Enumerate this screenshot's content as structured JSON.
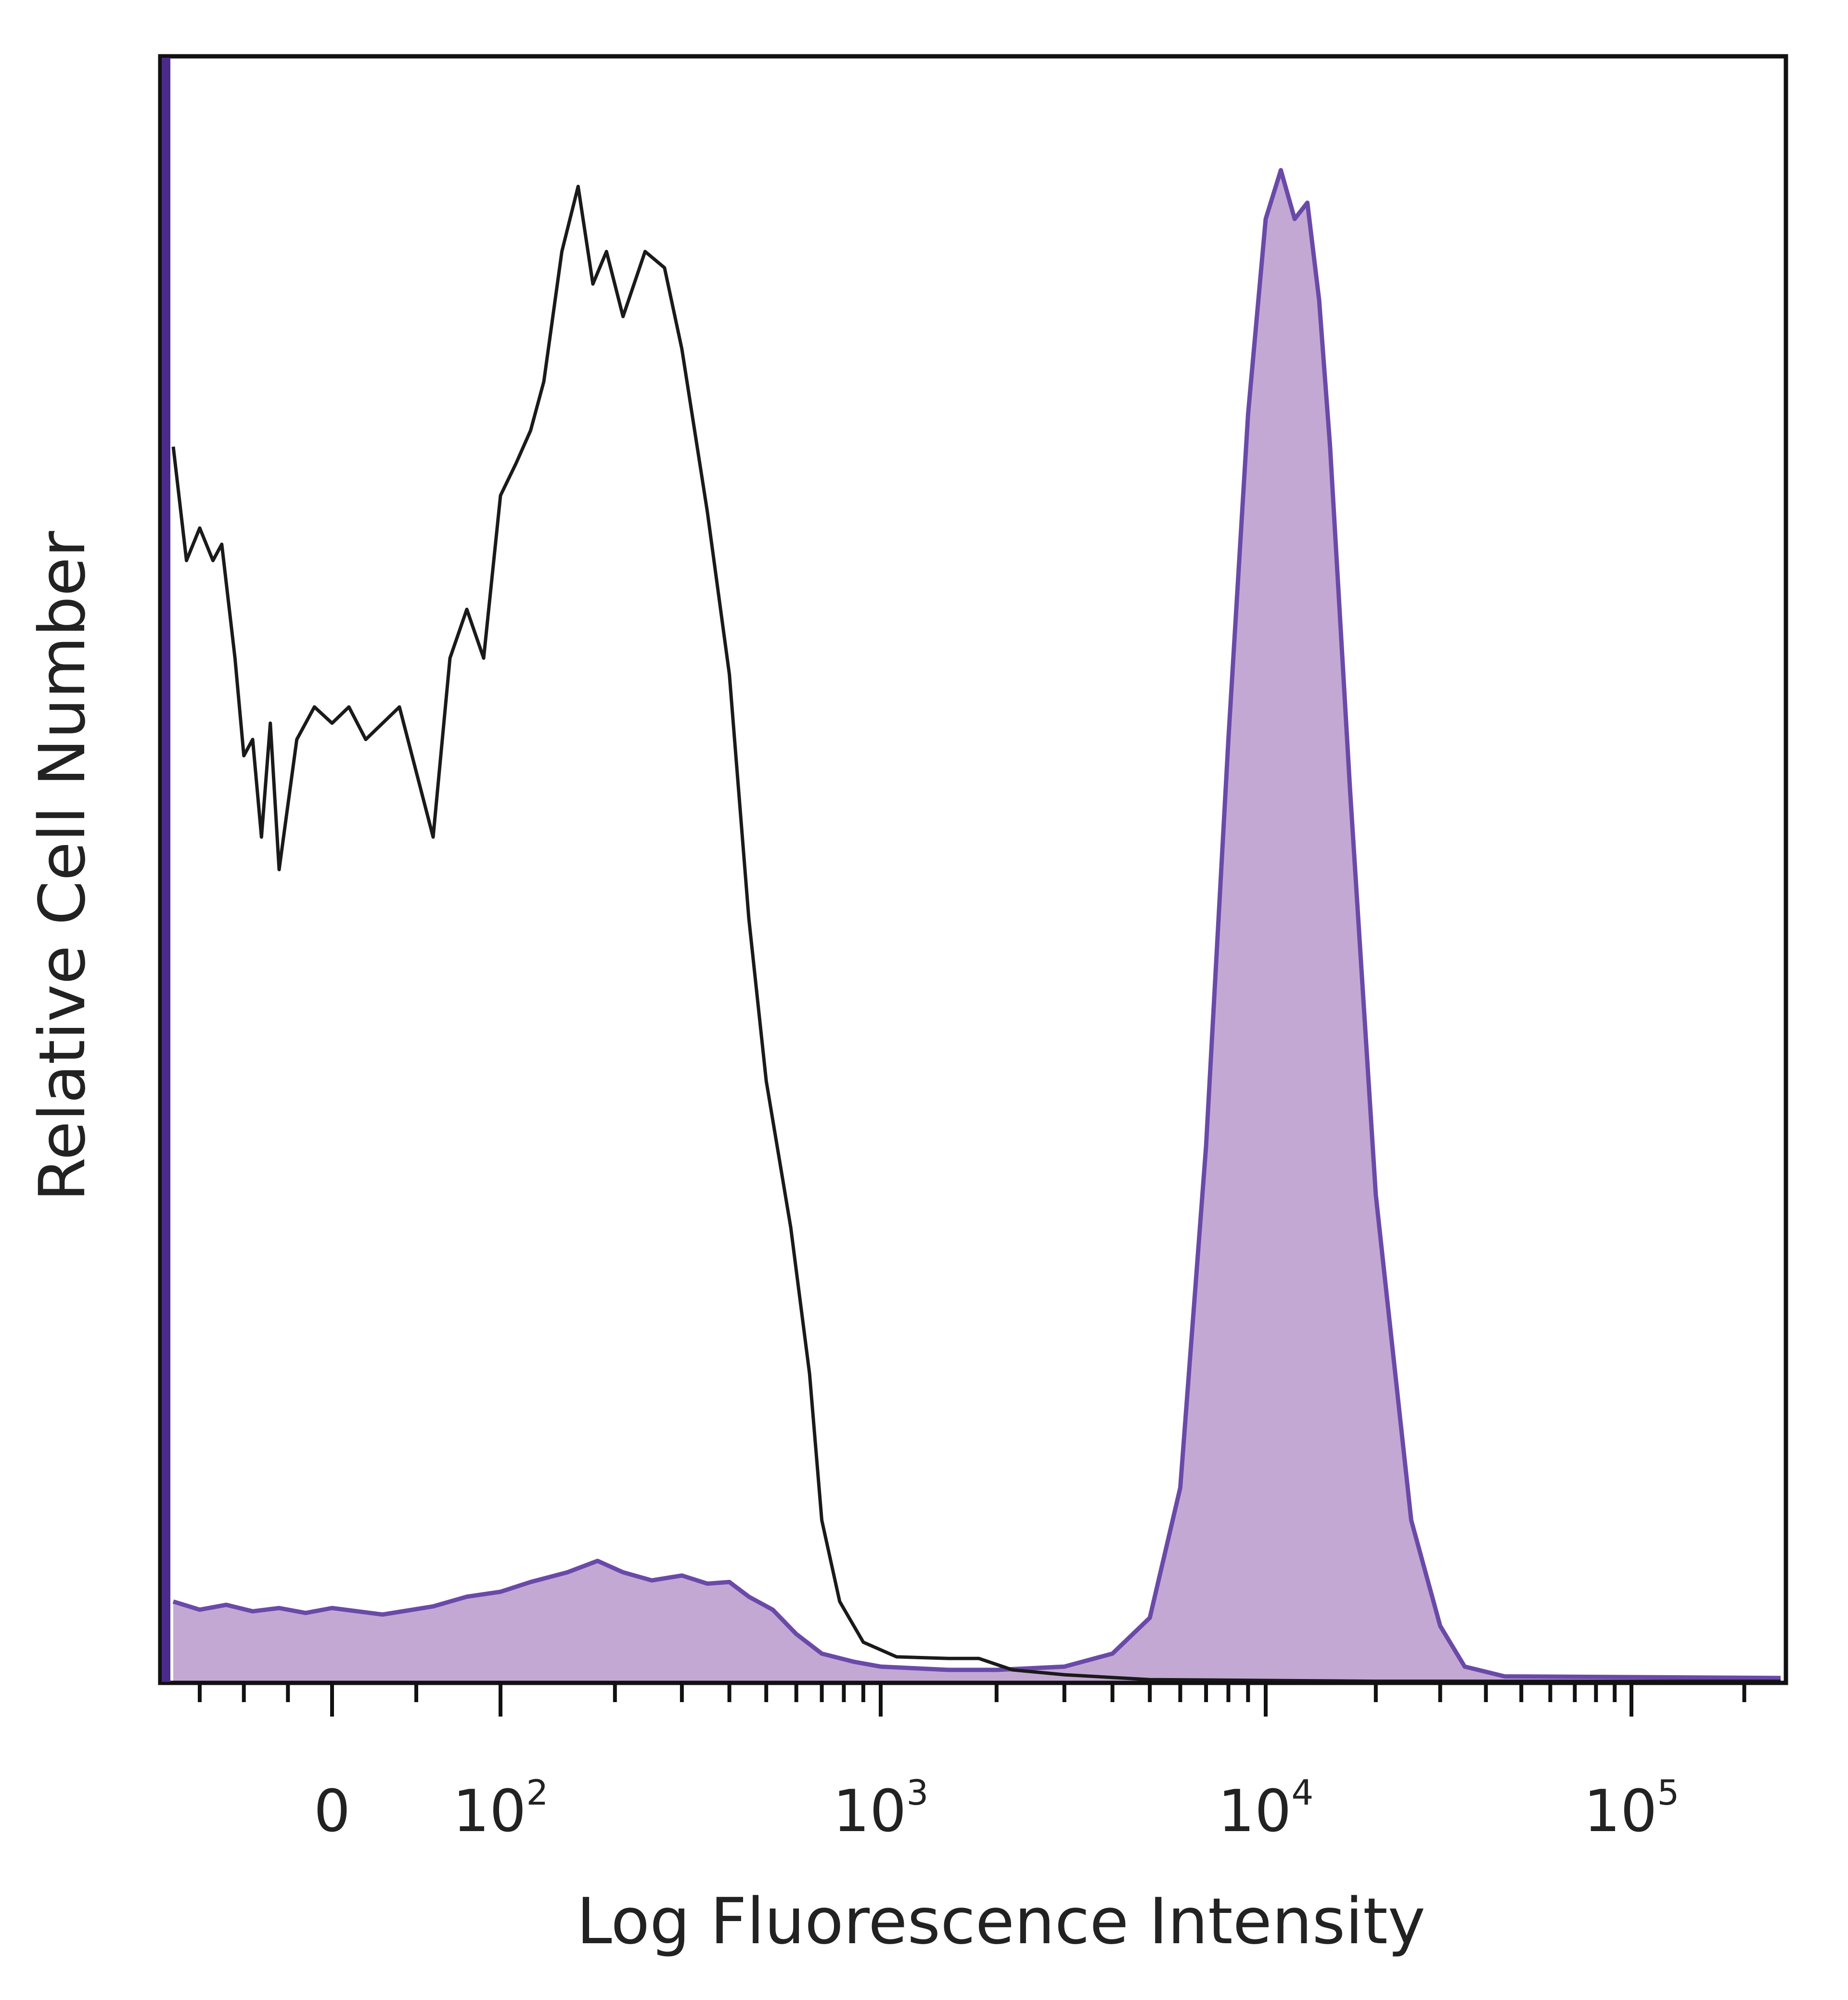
{
  "chart_data": {
    "type": "area",
    "title": "",
    "xlabel": "Log Fluorescence Intensity",
    "ylabel": "Relative Cell Number",
    "x_scale": "biexponential",
    "ylim": [
      0,
      100
    ],
    "grid": false,
    "legend": "none",
    "x_ticks": [
      {
        "value": 0,
        "base": "0",
        "exp": ""
      },
      {
        "value": 100,
        "base": "10",
        "exp": "2"
      },
      {
        "value": 1000,
        "base": "10",
        "exp": "3"
      },
      {
        "value": 10000,
        "base": "10",
        "exp": "4"
      },
      {
        "value": 100000,
        "base": "10",
        "exp": "5"
      }
    ],
    "series": [
      {
        "style": "outline",
        "color": "#1a1a1a",
        "points": [
          [
            -180,
            76
          ],
          [
            -165,
            69
          ],
          [
            -150,
            71
          ],
          [
            -135,
            69
          ],
          [
            -125,
            70
          ],
          [
            -110,
            63
          ],
          [
            -100,
            57
          ],
          [
            -90,
            58
          ],
          [
            -80,
            52
          ],
          [
            -70,
            59
          ],
          [
            -60,
            50
          ],
          [
            -40,
            58
          ],
          [
            -20,
            60
          ],
          [
            0,
            59
          ],
          [
            10,
            60
          ],
          [
            20,
            58
          ],
          [
            40,
            60
          ],
          [
            60,
            52
          ],
          [
            70,
            63
          ],
          [
            80,
            66
          ],
          [
            90,
            63
          ],
          [
            100,
            73
          ],
          [
            110,
            75
          ],
          [
            120,
            77
          ],
          [
            130,
            80
          ],
          [
            145,
            88
          ],
          [
            160,
            92
          ],
          [
            175,
            86
          ],
          [
            190,
            88
          ],
          [
            210,
            84
          ],
          [
            240,
            88
          ],
          [
            270,
            87
          ],
          [
            300,
            82
          ],
          [
            350,
            72
          ],
          [
            400,
            62
          ],
          [
            450,
            47
          ],
          [
            500,
            37
          ],
          [
            580,
            28
          ],
          [
            650,
            19
          ],
          [
            700,
            10
          ],
          [
            780,
            5
          ],
          [
            900,
            2.5
          ],
          [
            1100,
            1.6
          ],
          [
            1500,
            1.5
          ],
          [
            1800,
            1.5
          ],
          [
            2200,
            0.8
          ],
          [
            3000,
            0.5
          ],
          [
            5000,
            0.2
          ],
          [
            20000,
            0.1
          ],
          [
            250000,
            0.1
          ]
        ]
      },
      {
        "style": "filled",
        "color": "#6a4aa8",
        "fill": "#c3a8d4",
        "points": [
          [
            -180,
            5
          ],
          [
            -150,
            4.5
          ],
          [
            -120,
            4.8
          ],
          [
            -90,
            4.4
          ],
          [
            -60,
            4.6
          ],
          [
            -30,
            4.3
          ],
          [
            0,
            4.6
          ],
          [
            30,
            4.2
          ],
          [
            60,
            4.7
          ],
          [
            80,
            5.3
          ],
          [
            100,
            5.6
          ],
          [
            120,
            6.2
          ],
          [
            150,
            6.8
          ],
          [
            180,
            7.5
          ],
          [
            210,
            6.8
          ],
          [
            250,
            6.3
          ],
          [
            300,
            6.6
          ],
          [
            350,
            6.1
          ],
          [
            400,
            6.2
          ],
          [
            450,
            5.3
          ],
          [
            520,
            4.5
          ],
          [
            600,
            3.0
          ],
          [
            700,
            1.8
          ],
          [
            850,
            1.3
          ],
          [
            1000,
            1.0
          ],
          [
            1500,
            0.8
          ],
          [
            2000,
            0.8
          ],
          [
            3000,
            1.0
          ],
          [
            4000,
            1.8
          ],
          [
            5000,
            4.0
          ],
          [
            6000,
            12
          ],
          [
            7000,
            33
          ],
          [
            8000,
            58
          ],
          [
            9000,
            78
          ],
          [
            10000,
            90
          ],
          [
            11000,
            93
          ],
          [
            12000,
            90
          ],
          [
            13000,
            91
          ],
          [
            14000,
            85
          ],
          [
            15000,
            76
          ],
          [
            17000,
            55
          ],
          [
            20000,
            30
          ],
          [
            25000,
            10
          ],
          [
            30000,
            3.5
          ],
          [
            35000,
            1.0
          ],
          [
            45000,
            0.4
          ],
          [
            250000,
            0.3
          ]
        ]
      }
    ]
  }
}
